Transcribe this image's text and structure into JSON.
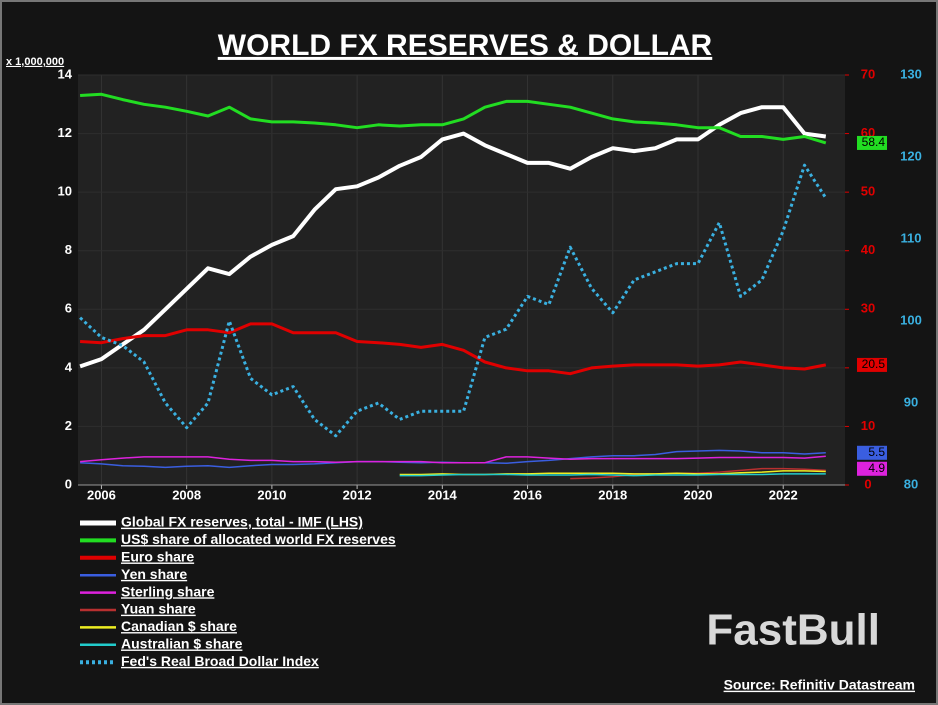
{
  "chart_data": {
    "type": "line",
    "title": "WORLD FX RESERVES & DOLLAR",
    "y_unit_label": "x 1,000,000",
    "source": "Source: Refinitiv Datastream",
    "watermark": "FastBull",
    "x": [
      2005.5,
      2006,
      2006.5,
      2007,
      2007.5,
      2008,
      2008.5,
      2009,
      2009.5,
      2010,
      2010.5,
      2011,
      2011.5,
      2012,
      2012.5,
      2013,
      2013.5,
      2014,
      2014.5,
      2015,
      2015.5,
      2016,
      2016.5,
      2017,
      2017.5,
      2018,
      2018.5,
      2019,
      2019.5,
      2020,
      2020.5,
      2021,
      2021.5,
      2022,
      2022.5,
      2023
    ],
    "xlim": [
      2005.45,
      2023.45
    ],
    "xticks": [
      2006,
      2008,
      2010,
      2012,
      2014,
      2016,
      2018,
      2020,
      2022
    ],
    "ylim": [
      0,
      14
    ],
    "yticks": [
      0,
      2,
      4,
      6,
      8,
      10,
      12,
      14
    ],
    "y2lim": [
      0,
      70
    ],
    "y2ticks": [
      0,
      10,
      20,
      30,
      40,
      50,
      60,
      70
    ],
    "y3lim": [
      80,
      130
    ],
    "y3ticks": [
      80,
      90,
      100,
      110,
      120,
      130
    ],
    "axis_colors": {
      "y": "#ffffff",
      "y2": "#e00000",
      "y3": "#3ab0e0"
    },
    "grid": true,
    "series": [
      {
        "name": "Global FX reserves, total - IMF (LHS)",
        "color": "#ffffff",
        "width": 4,
        "axis": "y",
        "values": [
          4.05,
          4.3,
          4.8,
          5.3,
          6.0,
          6.7,
          7.4,
          7.2,
          7.8,
          8.2,
          8.5,
          9.4,
          10.1,
          10.2,
          10.5,
          10.9,
          11.2,
          11.8,
          12.0,
          11.6,
          11.3,
          11.0,
          11.0,
          10.8,
          11.2,
          11.5,
          11.4,
          11.5,
          11.8,
          11.8,
          12.3,
          12.7,
          12.9,
          12.9,
          12.0,
          11.9
        ]
      },
      {
        "name": "US$ share of allocated world FX reserves",
        "color": "#22dd22",
        "width": 3,
        "axis": "y2",
        "end_label": true,
        "values": [
          66.5,
          66.7,
          65.8,
          65.0,
          64.5,
          63.8,
          63.0,
          64.5,
          62.5,
          62.0,
          62.0,
          61.8,
          61.5,
          61.0,
          61.5,
          61.3,
          61.5,
          61.5,
          62.5,
          64.5,
          65.5,
          65.5,
          65.0,
          64.5,
          63.5,
          62.5,
          62.0,
          61.8,
          61.5,
          61.0,
          61.0,
          59.5,
          59.5,
          59.0,
          59.5,
          58.4
        ]
      },
      {
        "name": "Euro share",
        "color": "#e00000",
        "width": 3,
        "axis": "y2",
        "end_label": true,
        "values": [
          24.5,
          24.3,
          25.0,
          25.5,
          25.5,
          26.5,
          26.5,
          26.0,
          27.5,
          27.5,
          26.0,
          26.0,
          26.0,
          24.5,
          24.3,
          24.0,
          23.5,
          24.0,
          23.0,
          21.0,
          20.0,
          19.5,
          19.5,
          19.0,
          20.0,
          20.3,
          20.5,
          20.5,
          20.5,
          20.3,
          20.5,
          21.0,
          20.5,
          20.0,
          19.8,
          20.5
        ]
      },
      {
        "name": "Yen share",
        "color": "#3a5ee0",
        "width": 1.5,
        "axis": "y2",
        "end_label": true,
        "values": [
          3.8,
          3.6,
          3.3,
          3.2,
          3.0,
          3.2,
          3.3,
          3.0,
          3.3,
          3.5,
          3.5,
          3.6,
          3.8,
          4.0,
          4.0,
          3.9,
          3.8,
          3.9,
          3.8,
          3.8,
          3.7,
          4.0,
          4.2,
          4.5,
          4.8,
          5.0,
          5.0,
          5.2,
          5.7,
          5.8,
          5.9,
          5.8,
          5.5,
          5.5,
          5.3,
          5.5
        ]
      },
      {
        "name": "Sterling share",
        "color": "#dd22dd",
        "width": 1.5,
        "axis": "y2",
        "end_label": true,
        "values": [
          4.0,
          4.3,
          4.6,
          4.8,
          4.8,
          4.8,
          4.8,
          4.4,
          4.2,
          4.2,
          4.0,
          4.0,
          3.9,
          4.0,
          4.0,
          4.0,
          4.0,
          3.8,
          3.8,
          3.8,
          4.8,
          4.8,
          4.6,
          4.4,
          4.5,
          4.5,
          4.5,
          4.5,
          4.5,
          4.6,
          4.7,
          4.7,
          4.7,
          4.7,
          4.6,
          4.9
        ]
      },
      {
        "name": "Yuan share",
        "color": "#b83030",
        "width": 1.5,
        "axis": "y2",
        "values": [
          null,
          null,
          null,
          null,
          null,
          null,
          null,
          null,
          null,
          null,
          null,
          null,
          null,
          null,
          null,
          null,
          null,
          null,
          null,
          null,
          null,
          null,
          null,
          1.1,
          1.2,
          1.4,
          1.8,
          1.9,
          2.0,
          2.0,
          2.2,
          2.5,
          2.8,
          2.8,
          2.7,
          2.5
        ]
      },
      {
        "name": "Canadian $ share",
        "color": "#eeee22",
        "width": 1.5,
        "axis": "y2",
        "values": [
          null,
          null,
          null,
          null,
          null,
          null,
          null,
          null,
          null,
          null,
          null,
          null,
          null,
          null,
          null,
          1.8,
          1.8,
          1.9,
          1.8,
          1.8,
          1.9,
          1.9,
          2.0,
          2.0,
          2.0,
          2.0,
          1.9,
          1.9,
          2.0,
          1.9,
          1.9,
          2.1,
          2.2,
          2.4,
          2.4,
          2.3
        ]
      },
      {
        "name": "Australian $ share",
        "color": "#22cccc",
        "width": 1.5,
        "axis": "y2",
        "values": [
          null,
          null,
          null,
          null,
          null,
          null,
          null,
          null,
          null,
          null,
          null,
          null,
          null,
          null,
          null,
          1.6,
          1.6,
          1.7,
          1.8,
          1.8,
          1.8,
          1.7,
          1.7,
          1.7,
          1.8,
          1.7,
          1.6,
          1.7,
          1.7,
          1.7,
          1.8,
          1.8,
          1.8,
          1.9,
          1.9,
          1.9
        ]
      },
      {
        "name": "Fed's Real Broad Dollar Index",
        "color": "#3ab0e0",
        "width": 3,
        "axis": "y3",
        "dash": true,
        "values": [
          100.4,
          98,
          97,
          95,
          90,
          87,
          90,
          100,
          93,
          91,
          92,
          88,
          86,
          89,
          90,
          88,
          89,
          89,
          89,
          98,
          99,
          103,
          102,
          109,
          104,
          101,
          105,
          106,
          107,
          107,
          112,
          103,
          105,
          111,
          119,
          115
        ]
      }
    ]
  }
}
